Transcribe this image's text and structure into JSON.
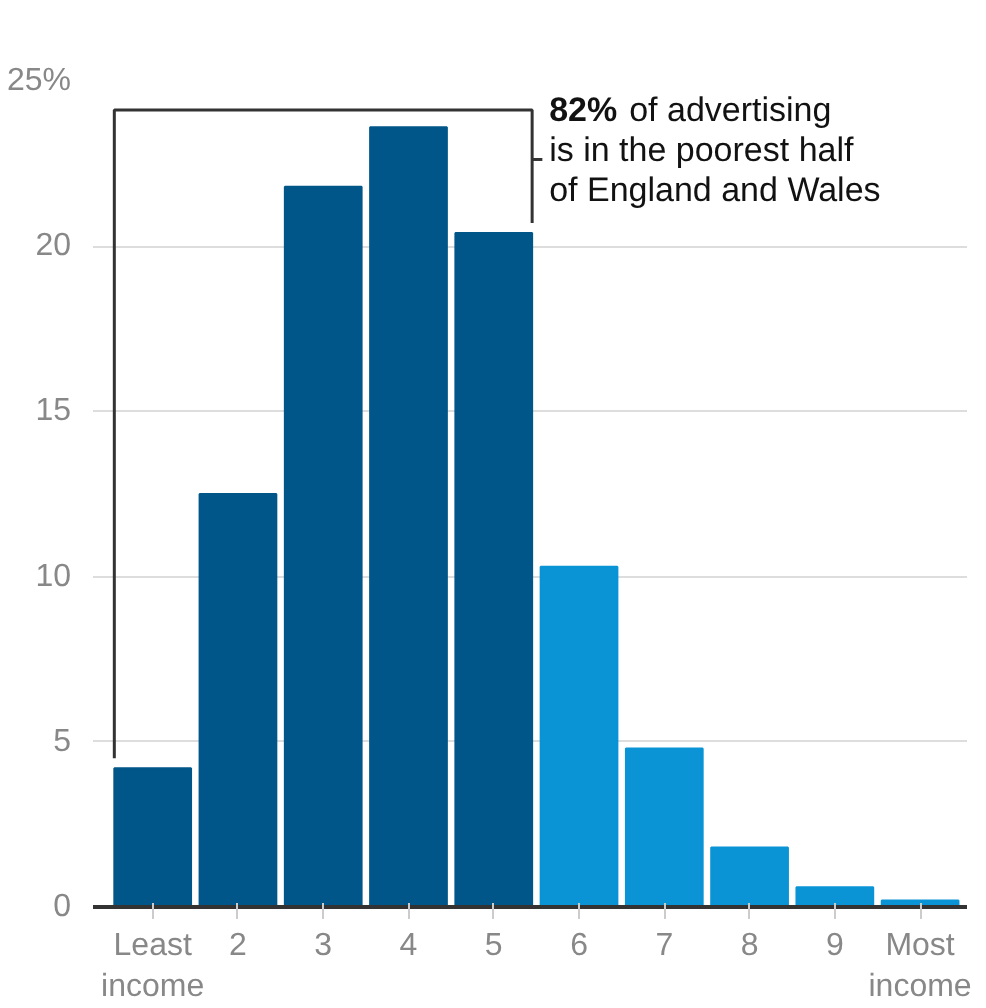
{
  "chart_data": {
    "type": "bar",
    "categories": [
      "Least income",
      "2",
      "3",
      "4",
      "5",
      "6",
      "7",
      "8",
      "9",
      "Most income"
    ],
    "values": [
      4.2,
      12.5,
      21.8,
      23.6,
      20.4,
      10.3,
      4.8,
      1.8,
      0.6,
      0.2
    ],
    "colors": [
      "#005689",
      "#005689",
      "#005689",
      "#005689",
      "#005689",
      "#0a94d6",
      "#0a94d6",
      "#0a94d6",
      "#0a94d6",
      "#0a94d6"
    ],
    "ylim": [
      0,
      25
    ],
    "yticks": [
      0,
      5,
      10,
      15,
      20,
      {
        "value": 25,
        "label": "25%"
      }
    ],
    "grid": "y",
    "annotations": [
      "82% of advertising\nis in the poorest half\nof England and Wales"
    ]
  }
}
